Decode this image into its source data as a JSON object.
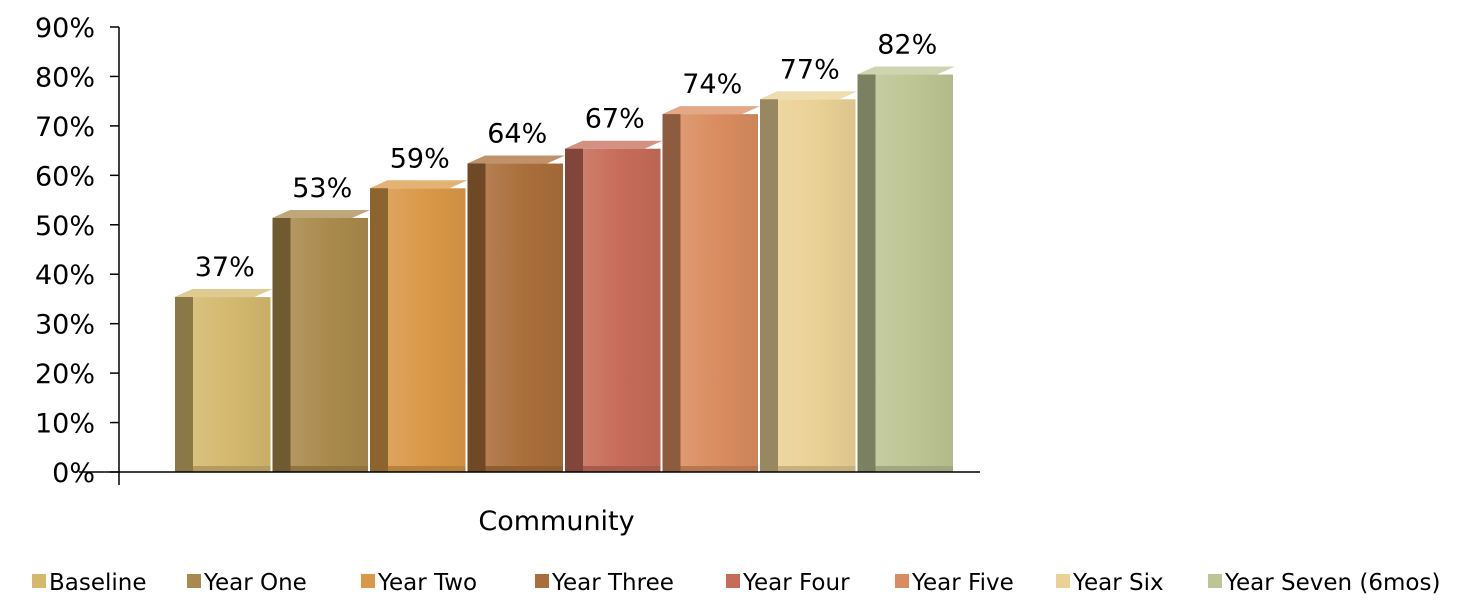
{
  "chart_data": {
    "type": "bar",
    "title": "",
    "xlabel": "Community",
    "ylabel": "",
    "ylim": [
      0,
      90
    ],
    "ytick_step": 10,
    "ytick_format": "percent",
    "grid": false,
    "legend_position": "bottom",
    "categories": [
      "Community"
    ],
    "series": [
      {
        "name": "Baseline",
        "values": [
          37
        ],
        "label": "37%",
        "color": "#D4B86E"
      },
      {
        "name": "Year One",
        "values": [
          53
        ],
        "label": "53%",
        "color": "#AA8A4C"
      },
      {
        "name": "Year Two",
        "values": [
          59
        ],
        "label": "59%",
        "color": "#D99847"
      },
      {
        "name": "Year Three",
        "values": [
          64
        ],
        "label": "64%",
        "color": "#AA6E3A"
      },
      {
        "name": "Year Four",
        "values": [
          67
        ],
        "label": "67%",
        "color": "#C66C58"
      },
      {
        "name": "Year Five",
        "values": [
          74
        ],
        "label": "74%",
        "color": "#D98C5F"
      },
      {
        "name": "Year Six",
        "values": [
          77
        ],
        "label": "77%",
        "color": "#EAD195"
      },
      {
        "name": "Year Seven (6mos)",
        "values": [
          82
        ],
        "label": "82%",
        "color": "#BDC594"
      }
    ]
  }
}
